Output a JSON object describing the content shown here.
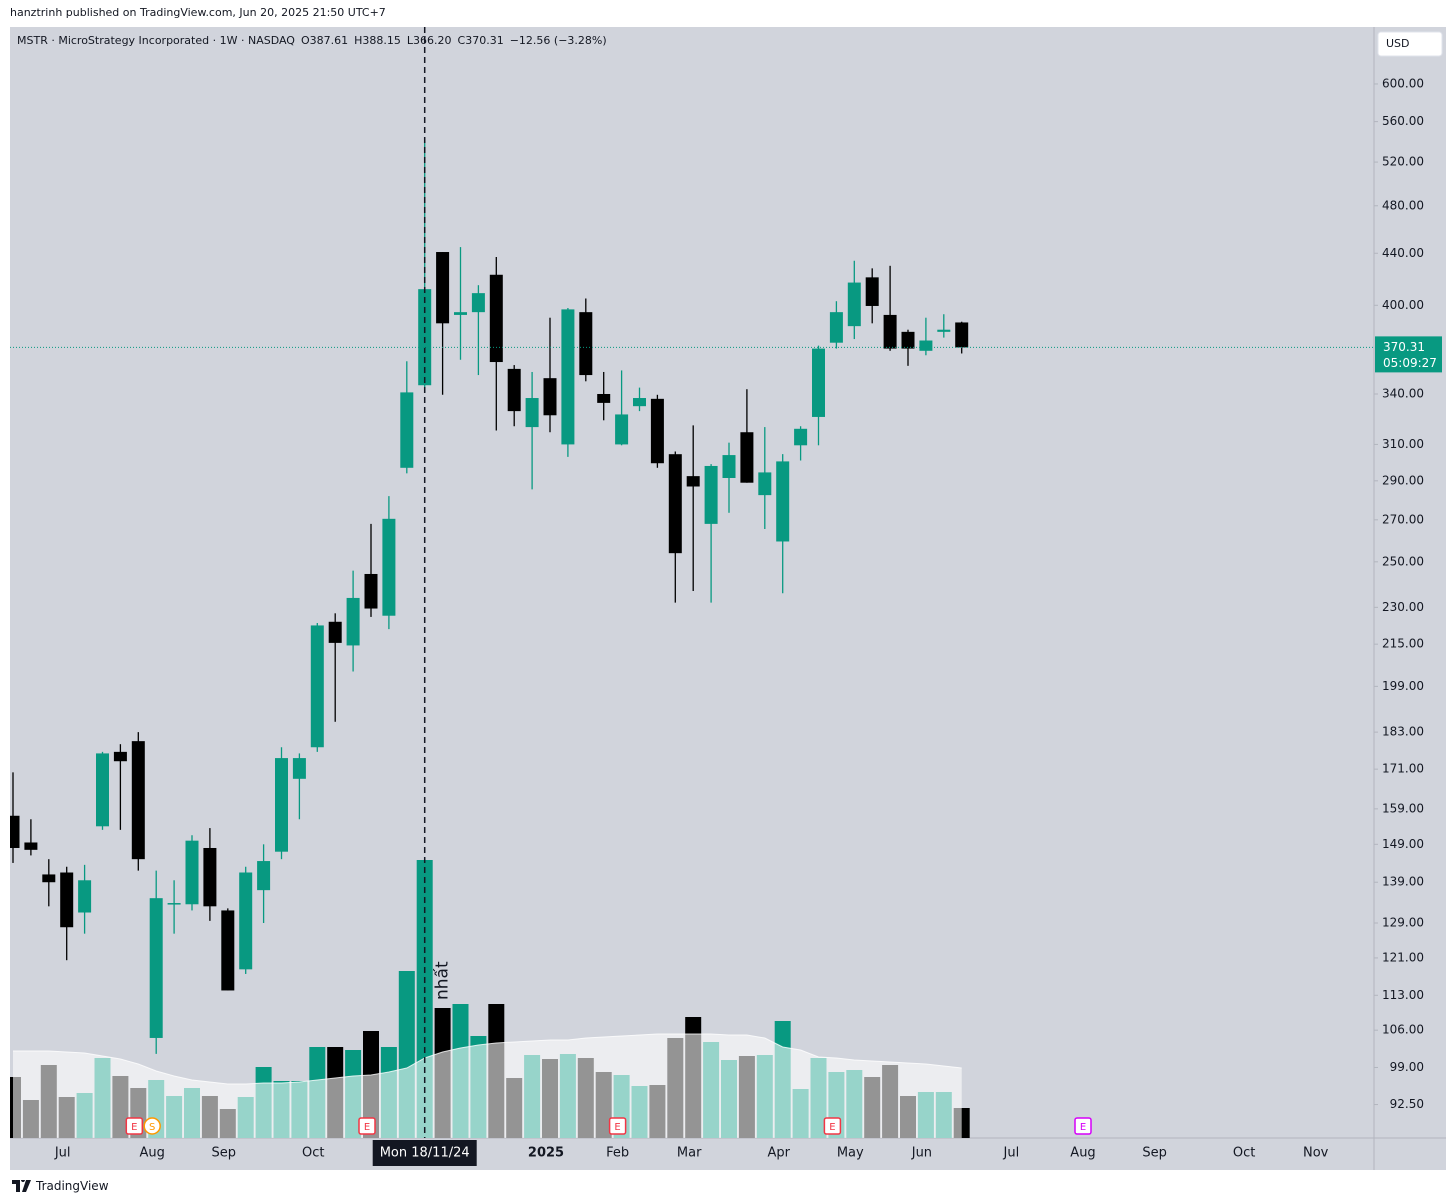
{
  "header": "hanztrinh published on TradingView.com, Jun 20, 2025 21:50 UTC+7",
  "footer": "TradingView",
  "chart_data": {
    "type": "candlestick",
    "legend": {
      "symbol": "MSTR · MicroStrategy Incorporated · 1W · NASDAQ",
      "ohlc_labels": [
        "O387.61",
        "H388.15",
        "L366.20",
        "C370.31"
      ],
      "change": "−12.56 (−3.28%)"
    },
    "currency": "USD",
    "countdown": "05:09:27",
    "annotation": "nhất",
    "crosshair_at": "Mon 18/11/24",
    "up_color": "#089981",
    "down_color": "#000000",
    "log_scale": true,
    "ylim": [
      87,
      666
    ],
    "yticks": [
      {
        "value": 600,
        "label": "600.00"
      },
      {
        "value": 560,
        "label": "560.00"
      },
      {
        "value": 520,
        "label": "520.00"
      },
      {
        "value": 480,
        "label": "480.00"
      },
      {
        "value": 440,
        "label": "440.00"
      },
      {
        "value": 400,
        "label": "400.00"
      },
      {
        "value": 340,
        "label": "340.00"
      },
      {
        "value": 310,
        "label": "310.00"
      },
      {
        "value": 290,
        "label": "290.00"
      },
      {
        "value": 270,
        "label": "270.00"
      },
      {
        "value": 250,
        "label": "250.00"
      },
      {
        "value": 230,
        "label": "230.00"
      },
      {
        "value": 215,
        "label": "215.00"
      },
      {
        "value": 199,
        "label": "199.00"
      },
      {
        "value": 183,
        "label": "183.00"
      },
      {
        "value": 171,
        "label": "171.00"
      },
      {
        "value": 159,
        "label": "159.00"
      },
      {
        "value": 149,
        "label": "149.00"
      },
      {
        "value": 139,
        "label": "139.00"
      },
      {
        "value": 129,
        "label": "129.00"
      },
      {
        "value": 121,
        "label": "121.00"
      },
      {
        "value": 113,
        "label": "113.00"
      },
      {
        "value": 106,
        "label": "106.00"
      },
      {
        "value": 99,
        "label": "99.00"
      },
      {
        "value": 92.5,
        "label": "92.50"
      }
    ],
    "categories": [
      null,
      null,
      null,
      "Jul",
      null,
      null,
      null,
      null,
      "Aug",
      null,
      null,
      null,
      "Sep",
      null,
      null,
      null,
      null,
      "Oct",
      null,
      null,
      null,
      null,
      null,
      "Mon 18/11/24",
      null,
      null,
      null,
      null,
      null,
      null,
      "2025",
      null,
      null,
      null,
      "Feb",
      null,
      null,
      null,
      "Mar",
      null,
      null,
      null,
      null,
      "Apr",
      null,
      null,
      null,
      "May",
      null,
      null,
      null,
      "Jun",
      null,
      null,
      null,
      null,
      "Jul",
      null,
      null,
      null,
      "Aug",
      null,
      null,
      null,
      "Sep",
      null,
      null,
      null,
      null,
      "Oct",
      null,
      null,
      null,
      "Nov",
      null,
      null
    ],
    "open": [
      157,
      149.5,
      141,
      141.5,
      131.5,
      154,
      176.5,
      180,
      104.5,
      133.5,
      133.5,
      148,
      132,
      118.5,
      137,
      147,
      168,
      178,
      224,
      214.5,
      244.5,
      226.5,
      297,
      345.5,
      441,
      393,
      395,
      423,
      356,
      320,
      350,
      310,
      395,
      340,
      310,
      332.5,
      337,
      304.5,
      292.5,
      268,
      291.5,
      317,
      282.5,
      259.5,
      309.5,
      326,
      373.5,
      385,
      421,
      393,
      381,
      368,
      381,
      387.61,
      null,
      null,
      null,
      null,
      null,
      null,
      null,
      null,
      null,
      null,
      null,
      null,
      null,
      null,
      null,
      null,
      null,
      null,
      null,
      null,
      null,
      null
    ],
    "high": [
      170,
      156,
      145,
      143,
      143.5,
      176.5,
      179,
      183,
      142,
      139.5,
      151.5,
      153.5,
      132.5,
      143,
      149,
      178,
      176,
      223.5,
      227.5,
      246,
      268,
      282,
      361,
      541,
      441,
      445,
      415,
      437,
      358.5,
      354,
      391,
      398,
      405,
      354,
      355,
      344,
      339.5,
      306,
      321,
      299,
      311,
      343,
      320,
      304.5,
      320.5,
      371.5,
      403,
      434,
      428,
      430,
      382.5,
      391,
      393.5,
      388.15,
      null,
      null,
      null,
      null,
      null,
      null,
      null,
      null,
      null,
      null,
      null,
      null,
      null,
      null,
      null,
      null,
      null,
      null,
      null,
      null,
      null,
      null
    ],
    "low": [
      144,
      146,
      133,
      120.5,
      126.5,
      153,
      153,
      142,
      101.5,
      126.5,
      132,
      129.5,
      114,
      117.5,
      129,
      145,
      156,
      176.5,
      186.5,
      204.5,
      226,
      221,
      294,
      341,
      339.5,
      362,
      352,
      318,
      320.5,
      285.5,
      317,
      303,
      348,
      324,
      309.5,
      329.5,
      297,
      232,
      237,
      232,
      273.5,
      289,
      265.5,
      236,
      301,
      309.5,
      369.5,
      376,
      387,
      368,
      358,
      365,
      377,
      366.2,
      null,
      null,
      null,
      null,
      null,
      null,
      null,
      null,
      null,
      null,
      null,
      null,
      null,
      null,
      null,
      null,
      null,
      null,
      null,
      null,
      null,
      null
    ],
    "close": [
      148,
      147.5,
      139,
      128,
      139.5,
      176,
      173.5,
      145,
      135,
      133.8,
      150,
      133,
      114,
      141.5,
      144.5,
      174.5,
      174.5,
      222.5,
      215.5,
      234,
      229.5,
      270.5,
      341,
      412,
      387,
      395,
      409,
      360.5,
      329.5,
      337.5,
      327,
      397,
      352,
      334.5,
      327.5,
      337.5,
      299.5,
      254,
      287,
      298,
      304,
      289,
      294.5,
      300.5,
      319,
      369.5,
      395,
      417,
      399.5,
      369.5,
      369.5,
      375,
      382.5,
      370.31,
      null,
      null,
      null,
      null,
      null,
      null,
      null,
      null,
      null,
      null,
      null,
      null,
      null,
      null,
      null,
      null,
      null,
      null,
      null,
      null,
      null,
      null
    ],
    "volume": [
      61,
      38,
      73,
      41,
      45,
      80,
      62,
      50,
      58,
      42,
      50,
      42,
      29,
      41,
      71,
      57,
      57,
      91,
      91,
      88,
      107,
      91,
      167,
      278,
      130,
      134,
      102,
      134,
      60,
      83,
      79,
      84,
      80,
      66,
      63,
      52,
      53,
      100,
      121,
      96,
      78,
      82,
      83,
      117,
      49,
      80,
      66,
      68,
      61,
      73,
      42,
      46,
      46,
      30,
      null,
      null,
      null,
      null,
      null,
      null,
      null,
      null,
      null,
      null,
      null,
      null,
      null,
      null,
      null,
      null,
      null,
      null,
      null,
      null,
      null,
      null
    ],
    "volume_ma": [
      87,
      87,
      87,
      86,
      85,
      82,
      79,
      74,
      67,
      62,
      58,
      56,
      54,
      54,
      55,
      55,
      56,
      58,
      60,
      62,
      63,
      66,
      70,
      80,
      86,
      90,
      93,
      95,
      96,
      97,
      98,
      98,
      100,
      101,
      102,
      103,
      104,
      104,
      104,
      104,
      103,
      103,
      100,
      91,
      88,
      81,
      80,
      78,
      77,
      76,
      75,
      74,
      72,
      70,
      null,
      null,
      null,
      null,
      null,
      null,
      null,
      null,
      null,
      null,
      null,
      null,
      null,
      null,
      null,
      null,
      null,
      null,
      null,
      null,
      null,
      null
    ],
    "volume_ylim": [
      0,
      1111
    ],
    "events": [
      null,
      null,
      null,
      null,
      null,
      null,
      null,
      "E",
      "S",
      null,
      null,
      null,
      null,
      null,
      null,
      null,
      null,
      null,
      null,
      null,
      "E",
      null,
      null,
      null,
      null,
      null,
      null,
      null,
      null,
      null,
      null,
      null,
      null,
      null,
      "E",
      null,
      null,
      null,
      null,
      null,
      null,
      null,
      null,
      null,
      null,
      null,
      "E",
      null,
      null,
      null,
      null,
      null,
      null,
      null,
      null,
      null,
      null,
      null,
      null,
      null,
      "E",
      null,
      null,
      null,
      null,
      null,
      null,
      null,
      null,
      null,
      null,
      null,
      null,
      null,
      null,
      null
    ],
    "event_colors": {
      "E": "#f23645",
      "S": "#ff9800"
    },
    "upcoming_event_color": "#d500f9"
  }
}
